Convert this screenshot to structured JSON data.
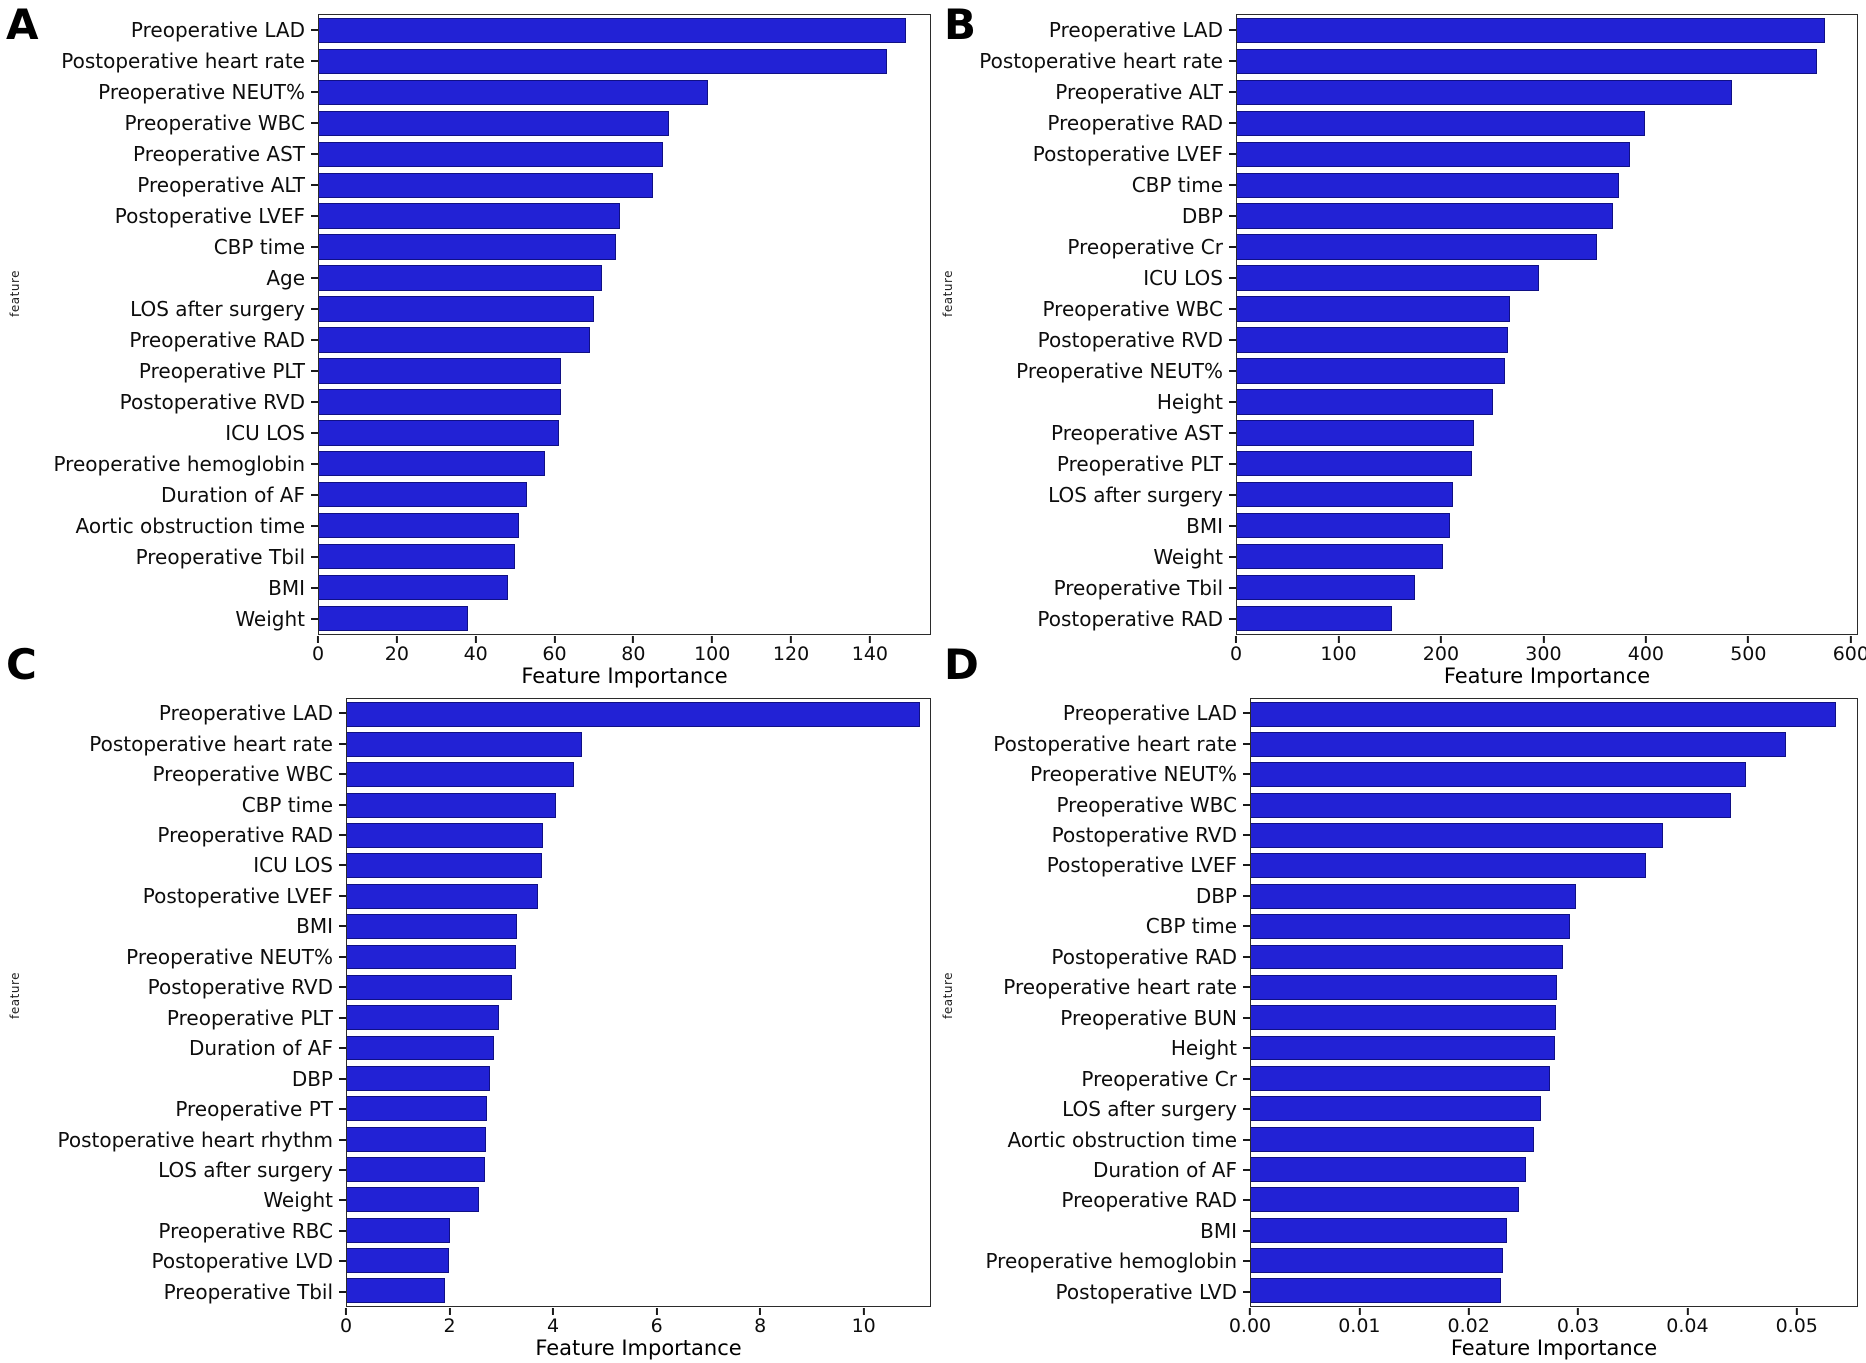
{
  "figure": {
    "background": "#ffffff",
    "bar_fill": "#2222d5",
    "bar_edge": "#101084",
    "spine_color": "#2b2b2b",
    "text_color": "#0d0d0d"
  },
  "chart_data": [
    {
      "type": "bar",
      "panel": "A",
      "orientation": "horizontal",
      "title": "",
      "xlabel": "Feature Importance",
      "ylabel": "feature",
      "grid": false,
      "legend": false,
      "xlim": [
        0,
        155.5
      ],
      "xticks": [
        0,
        20,
        40,
        60,
        80,
        100,
        120,
        140
      ],
      "xtick_labels": [
        "0",
        "20",
        "40",
        "60",
        "80",
        "100",
        "120",
        "140"
      ],
      "categories": [
        "Preoperative LAD",
        "Postoperative heart rate",
        "Preoperative NEUT%",
        "Preoperative WBC",
        "Preoperative AST",
        "Preoperative ALT",
        "Postoperative LVEF",
        "CBP time",
        "Age",
        "LOS after surgery",
        "Preoperative RAD",
        "Preoperative PLT",
        "Postoperative RVD",
        "ICU LOS",
        "Preoperative hemoglobin",
        "Duration of AF",
        "Aortic obstruction time",
        "Preoperative Tbil",
        "BMI",
        "Weight"
      ],
      "values": [
        149.5,
        144.5,
        99,
        89,
        87.5,
        85,
        76.5,
        75.5,
        72,
        70,
        69,
        61.5,
        61.5,
        61,
        57.5,
        53,
        51,
        50,
        48,
        38
      ]
    },
    {
      "type": "bar",
      "panel": "B",
      "orientation": "horizontal",
      "title": "",
      "xlabel": "Feature Importance",
      "ylabel": "feature",
      "grid": false,
      "legend": false,
      "xlim": [
        0,
        607
      ],
      "xticks": [
        0,
        100,
        200,
        300,
        400,
        500,
        600
      ],
      "xtick_labels": [
        "0",
        "100",
        "200",
        "300",
        "400",
        "500",
        "600"
      ],
      "categories": [
        "Preoperative LAD",
        "Postoperative heart rate",
        "Preoperative ALT",
        "Preoperative RAD",
        "Postoperative LVEF",
        "CBP time",
        "DBP",
        "Preoperative Cr",
        "ICU LOS",
        "Preoperative WBC",
        "Postoperative RVD",
        "Preoperative NEUT%",
        "Height",
        "Preoperative AST",
        "Preoperative PLT",
        "LOS after surgery",
        "BMI",
        "Weight",
        "Preoperative Tbil",
        "Postoperative RAD"
      ],
      "values": [
        576,
        568,
        485,
        399,
        385,
        374,
        368,
        352,
        296,
        267,
        265,
        262,
        251,
        232,
        230,
        211,
        209,
        202,
        174,
        152
      ]
    },
    {
      "type": "bar",
      "panel": "C",
      "orientation": "horizontal",
      "title": "",
      "xlabel": "Feature Importance",
      "ylabel": "feature",
      "grid": false,
      "legend": false,
      "xlim": [
        0,
        11.3
      ],
      "xticks": [
        0,
        2,
        4,
        6,
        8,
        10
      ],
      "xtick_labels": [
        "0",
        "2",
        "4",
        "6",
        "8",
        "10"
      ],
      "categories": [
        "Preoperative LAD",
        "Postoperative heart rate",
        "Preoperative WBC",
        "CBP time",
        "Preoperative RAD",
        "ICU LOS",
        "Postoperative LVEF",
        "BMI",
        "Preoperative NEUT%",
        "Postoperative RVD",
        "Preoperative PLT",
        "Duration of AF",
        "DBP",
        "Preoperative PT",
        "Postoperative heart rhythm",
        "LOS after surgery",
        "Weight",
        "Preoperative RBC",
        "Postoperative LVD",
        "Preoperative Tbil"
      ],
      "values": [
        11.1,
        4.55,
        4.4,
        4.05,
        3.8,
        3.78,
        3.7,
        3.3,
        3.27,
        3.2,
        2.95,
        2.85,
        2.78,
        2.72,
        2.69,
        2.68,
        2.55,
        2.0,
        1.97,
        1.9
      ]
    },
    {
      "type": "bar",
      "panel": "D",
      "orientation": "horizontal",
      "title": "",
      "xlabel": "Feature Importance",
      "ylabel": "feature",
      "grid": false,
      "legend": false,
      "xlim": [
        0,
        0.0556
      ],
      "xticks": [
        0,
        0.01,
        0.02,
        0.03,
        0.04,
        0.05
      ],
      "xtick_labels": [
        "0.00",
        "0.01",
        "0.02",
        "0.03",
        "0.04",
        "0.05"
      ],
      "categories": [
        "Preoperative LAD",
        "Postoperative heart rate",
        "Preoperative NEUT%",
        "Preoperative WBC",
        "Postoperative RVD",
        "Postoperative LVEF",
        "DBP",
        "CBP time",
        "Postoperative RAD",
        "Preoperative heart rate",
        "Preoperative BUN",
        "Height",
        "Preoperative Cr",
        "LOS after surgery",
        "Aortic obstruction time",
        "Duration of AF",
        "Preoperative RAD",
        "BMI",
        "Preoperative hemoglobin",
        "Postoperative LVD"
      ],
      "values": [
        0.0537,
        0.0491,
        0.0454,
        0.044,
        0.0378,
        0.0362,
        0.0298,
        0.0293,
        0.0286,
        0.0281,
        0.028,
        0.0279,
        0.0274,
        0.0266,
        0.026,
        0.0252,
        0.0246,
        0.0235,
        0.0231,
        0.0229
      ]
    }
  ]
}
